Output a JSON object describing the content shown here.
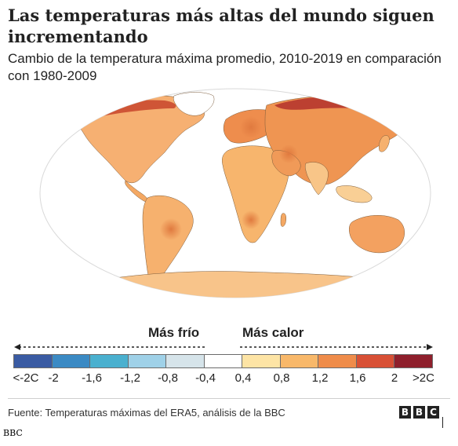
{
  "title": "Las temperaturas más altas del mundo siguen incrementando",
  "subtitle": "Cambio de la temperatura máxima promedio, 2010-2019 en comparación con 1980-2009",
  "legend": {
    "colder_label": "Más frío",
    "warmer_label": "Más calor",
    "colors": [
      "#3a5ba3",
      "#3b8ac4",
      "#4ab0cf",
      "#9fd1e8",
      "#d6e4ea",
      "#ffffff",
      "#fde4a5",
      "#f8b86a",
      "#ef8c4a",
      "#d85035",
      "#8e1f2c"
    ],
    "ticks": [
      "<-2C",
      "-2",
      "-1,6",
      "-1,2",
      "-0,8",
      "-0,4",
      "0,4",
      "0,8",
      "1,2",
      "1,6",
      "2",
      ">2C"
    ]
  },
  "footer": {
    "source": "Fuente: Temperaturas máximas del ERA5, análisis de la BBC",
    "logo_letters": [
      "B",
      "B",
      "C"
    ]
  },
  "caption": "BBC"
}
